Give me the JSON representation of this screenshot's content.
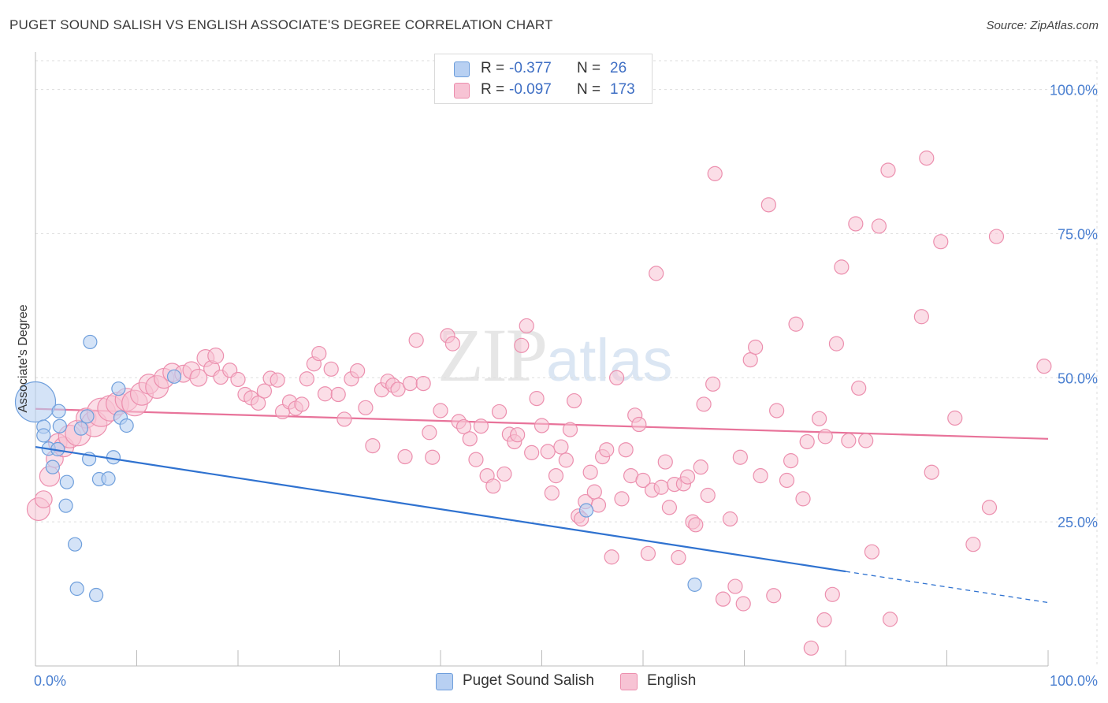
{
  "header": {
    "title": "PUGET SOUND SALISH VS ENGLISH ASSOCIATE'S DEGREE CORRELATION CHART",
    "source": "Source: ZipAtlas.com"
  },
  "watermark": {
    "zip": "ZIP",
    "atlas": "atlas"
  },
  "legend": {
    "rows": [
      {
        "r_label": "R =",
        "r_value": "-0.377",
        "n_label": "N =",
        "n_value": "26"
      },
      {
        "r_label": "R =",
        "r_value": "-0.097",
        "n_label": "N =",
        "n_value": "173"
      }
    ]
  },
  "bottom_legend": {
    "series1": "Puget Sound Salish",
    "series2": "English"
  },
  "colors": {
    "blue_fill": "#b8d0f2",
    "blue_stroke": "#6f9fdc",
    "blue_line": "#2f72d0",
    "pink_fill": "#f7c3d4",
    "pink_stroke": "#ec8fae",
    "pink_line": "#e8739a",
    "grid": "#dddddd",
    "tick": "#4a7fd0"
  },
  "chart_data": {
    "type": "scatter",
    "title": "PUGET SOUND SALISH VS ENGLISH ASSOCIATE'S DEGREE CORRELATION CHART",
    "xlabel": "",
    "ylabel": "Associate's Degree",
    "xlim": [
      0,
      100
    ],
    "ylim": [
      0,
      105
    ],
    "x_tick_labels": [
      "0.0%",
      "100.0%"
    ],
    "y_ticks": [
      25,
      50,
      75,
      100
    ],
    "y_tick_labels": [
      "25.0%",
      "50.0%",
      "75.0%",
      "100.0%"
    ],
    "grid": true,
    "series": [
      {
        "name": "Puget Sound Salish",
        "R": -0.377,
        "N": 26,
        "trend": {
          "x0": 0,
          "y0": 38.0,
          "x1": 80,
          "y1": 16.4,
          "dash_to_x": 100,
          "dash_to_y": 11.0
        },
        "points": [
          [
            0.0,
            45.8,
            3
          ],
          [
            0.8,
            41.5,
            1
          ],
          [
            0.8,
            40.0,
            1
          ],
          [
            1.3,
            37.7,
            1
          ],
          [
            2.2,
            37.6,
            1
          ],
          [
            2.3,
            44.2,
            1
          ],
          [
            2.4,
            41.6,
            1
          ],
          [
            1.7,
            34.5,
            1
          ],
          [
            3.1,
            31.9,
            1
          ],
          [
            3.0,
            27.8,
            1
          ],
          [
            3.9,
            21.1,
            1
          ],
          [
            4.1,
            13.4,
            1
          ],
          [
            5.1,
            43.3,
            1
          ],
          [
            4.5,
            41.2,
            1
          ],
          [
            5.3,
            35.9,
            1
          ],
          [
            5.4,
            56.2,
            1
          ],
          [
            6.3,
            32.4,
            1
          ],
          [
            7.2,
            32.5,
            1
          ],
          [
            7.7,
            36.2,
            1
          ],
          [
            8.2,
            48.1,
            1
          ],
          [
            8.4,
            43.1,
            1
          ],
          [
            9.0,
            41.7,
            1
          ],
          [
            6.0,
            12.3,
            1
          ],
          [
            13.7,
            50.2,
            1
          ],
          [
            54.4,
            27.0,
            1
          ],
          [
            65.1,
            14.1,
            1
          ]
        ]
      },
      {
        "name": "English",
        "R": -0.097,
        "N": 173,
        "trend": {
          "x0": 0,
          "y0": 44.6,
          "x1": 100,
          "y1": 39.4
        },
        "points": [
          [
            0.3,
            27.2,
            1.6
          ],
          [
            0.8,
            28.9,
            1.2
          ],
          [
            1.4,
            32.9,
            1.4
          ],
          [
            1.9,
            35.9,
            1.2
          ],
          [
            2.2,
            38.7,
            1.3
          ],
          [
            2.8,
            38.0,
            1.4
          ],
          [
            3.4,
            39.8,
            1.6
          ],
          [
            4.2,
            40.4,
            1.8
          ],
          [
            5.0,
            43.0,
            1.4
          ],
          [
            5.8,
            42.0,
            1.8
          ],
          [
            6.5,
            44.0,
            2.0
          ],
          [
            7.4,
            44.7,
            1.8
          ],
          [
            8.1,
            45.5,
            1.6
          ],
          [
            9.0,
            46.2,
            1.6
          ],
          [
            9.8,
            45.6,
            1.8
          ],
          [
            10.5,
            47.2,
            1.6
          ],
          [
            11.2,
            48.9,
            1.4
          ],
          [
            12.0,
            48.4,
            1.6
          ],
          [
            12.7,
            49.9,
            1.4
          ],
          [
            13.5,
            50.9,
            1.3
          ],
          [
            14.6,
            50.7,
            1.2
          ],
          [
            15.4,
            51.3,
            1.2
          ],
          [
            16.1,
            50.0,
            1.2
          ],
          [
            16.8,
            53.4,
            1.2
          ],
          [
            17.4,
            51.6,
            1.1
          ],
          [
            17.8,
            53.8,
            1.1
          ],
          [
            18.3,
            50.1,
            1.0
          ],
          [
            19.2,
            51.3,
            1.0
          ],
          [
            20.0,
            49.7,
            1.0
          ],
          [
            20.7,
            47.1,
            1.0
          ],
          [
            21.3,
            46.5,
            1.0
          ],
          [
            22.0,
            45.6,
            1.0
          ],
          [
            22.6,
            47.7,
            1.0
          ],
          [
            23.2,
            49.9,
            1.0
          ],
          [
            23.9,
            49.6,
            1.0
          ],
          [
            24.4,
            44.1,
            1.0
          ],
          [
            25.1,
            45.8,
            1.0
          ],
          [
            25.7,
            44.7,
            1.0
          ],
          [
            26.3,
            45.4,
            1.0
          ],
          [
            26.8,
            49.8,
            1.0
          ],
          [
            27.5,
            52.4,
            1.0
          ],
          [
            28.0,
            54.2,
            1.0
          ],
          [
            28.6,
            47.2,
            1.0
          ],
          [
            29.2,
            51.5,
            1.0
          ],
          [
            29.9,
            47.1,
            1.0
          ],
          [
            30.5,
            42.8,
            1.0
          ],
          [
            31.2,
            49.8,
            1.0
          ],
          [
            31.8,
            51.2,
            1.0
          ],
          [
            32.6,
            44.8,
            1.0
          ],
          [
            33.3,
            38.2,
            1.0
          ],
          [
            34.2,
            47.9,
            1.0
          ],
          [
            34.8,
            49.4,
            1.0
          ],
          [
            35.3,
            48.7,
            1.0
          ],
          [
            35.8,
            48.0,
            1.0
          ],
          [
            36.5,
            36.3,
            1.0
          ],
          [
            37.0,
            49.0,
            1.0
          ],
          [
            37.6,
            56.5,
            1.0
          ],
          [
            38.3,
            49.0,
            1.0
          ],
          [
            38.9,
            40.5,
            1.0
          ],
          [
            39.2,
            36.2,
            1.0
          ],
          [
            40.0,
            44.3,
            1.0
          ],
          [
            40.7,
            57.3,
            1.0
          ],
          [
            41.2,
            55.9,
            1.0
          ],
          [
            41.8,
            42.4,
            1.0
          ],
          [
            42.3,
            41.5,
            1.0
          ],
          [
            42.9,
            39.4,
            1.0
          ],
          [
            43.5,
            35.8,
            1.0
          ],
          [
            44.0,
            41.6,
            1.0
          ],
          [
            44.6,
            33.0,
            1.0
          ],
          [
            45.2,
            31.2,
            1.0
          ],
          [
            45.8,
            44.1,
            1.0
          ],
          [
            46.3,
            33.3,
            1.0
          ],
          [
            46.8,
            40.2,
            1.0
          ],
          [
            47.3,
            38.9,
            1.0
          ],
          [
            47.6,
            40.1,
            1.0
          ],
          [
            48.0,
            55.6,
            1.0
          ],
          [
            48.5,
            59.0,
            1.0
          ],
          [
            49.0,
            37.0,
            1.0
          ],
          [
            49.5,
            46.4,
            1.0
          ],
          [
            50.0,
            41.7,
            1.0
          ],
          [
            50.6,
            37.2,
            1.0
          ],
          [
            51.0,
            30.0,
            1.0
          ],
          [
            51.4,
            33.0,
            1.0
          ],
          [
            51.9,
            38.0,
            1.0
          ],
          [
            52.4,
            35.7,
            1.0
          ],
          [
            52.8,
            41.0,
            1.0
          ],
          [
            53.2,
            46.0,
            1.0
          ],
          [
            53.6,
            26.0,
            1.0
          ],
          [
            53.9,
            25.5,
            1.0
          ],
          [
            54.3,
            28.5,
            1.0
          ],
          [
            54.8,
            33.6,
            1.0
          ],
          [
            55.2,
            30.2,
            1.0
          ],
          [
            55.6,
            27.9,
            1.0
          ],
          [
            56.0,
            36.3,
            1.0
          ],
          [
            56.4,
            37.5,
            1.0
          ],
          [
            56.9,
            18.9,
            1.0
          ],
          [
            57.4,
            50.0,
            1.0
          ],
          [
            57.9,
            29.0,
            1.0
          ],
          [
            58.3,
            37.5,
            1.0
          ],
          [
            58.8,
            33.0,
            1.0
          ],
          [
            59.2,
            43.5,
            1.0
          ],
          [
            59.6,
            41.9,
            1.0
          ],
          [
            60.0,
            32.2,
            1.0
          ],
          [
            60.5,
            19.5,
            1.0
          ],
          [
            60.9,
            30.5,
            1.0
          ],
          [
            61.3,
            68.1,
            1.0
          ],
          [
            61.8,
            31.0,
            1.0
          ],
          [
            62.2,
            35.4,
            1.0
          ],
          [
            62.6,
            27.5,
            1.0
          ],
          [
            63.1,
            31.5,
            1.0
          ],
          [
            63.5,
            18.8,
            1.0
          ],
          [
            64.0,
            31.6,
            1.0
          ],
          [
            64.4,
            32.8,
            1.0
          ],
          [
            64.9,
            25.0,
            1.0
          ],
          [
            65.2,
            24.5,
            1.0
          ],
          [
            65.7,
            34.5,
            1.0
          ],
          [
            66.0,
            45.4,
            1.0
          ],
          [
            66.4,
            29.6,
            1.0
          ],
          [
            66.9,
            48.9,
            1.0
          ],
          [
            67.1,
            85.4,
            1.0
          ],
          [
            67.9,
            11.6,
            1.0
          ],
          [
            68.6,
            25.5,
            1.0
          ],
          [
            69.1,
            13.8,
            1.0
          ],
          [
            69.6,
            36.2,
            1.0
          ],
          [
            69.9,
            10.8,
            1.0
          ],
          [
            70.6,
            53.1,
            1.0
          ],
          [
            71.1,
            55.3,
            1.0
          ],
          [
            71.6,
            33.0,
            1.0
          ],
          [
            72.4,
            80.0,
            1.0
          ],
          [
            72.9,
            12.2,
            1.0
          ],
          [
            73.2,
            44.3,
            1.0
          ],
          [
            74.2,
            32.2,
            1.0
          ],
          [
            74.6,
            35.6,
            1.0
          ],
          [
            75.1,
            59.3,
            1.0
          ],
          [
            75.8,
            29.0,
            1.0
          ],
          [
            76.2,
            38.9,
            1.0
          ],
          [
            76.6,
            3.1,
            1.0
          ],
          [
            77.4,
            42.9,
            1.0
          ],
          [
            77.9,
            8.0,
            1.0
          ],
          [
            78.0,
            39.8,
            1.0
          ],
          [
            78.7,
            12.4,
            1.0
          ],
          [
            79.1,
            55.9,
            1.0
          ],
          [
            79.6,
            69.2,
            1.0
          ],
          [
            80.3,
            39.1,
            1.0
          ],
          [
            81.0,
            76.7,
            1.0
          ],
          [
            81.3,
            48.2,
            1.0
          ],
          [
            82.0,
            39.1,
            1.0
          ],
          [
            82.6,
            19.8,
            1.0
          ],
          [
            83.3,
            76.3,
            1.0
          ],
          [
            84.2,
            86.0,
            1.0
          ],
          [
            84.4,
            8.1,
            1.0
          ],
          [
            87.5,
            60.6,
            1.0
          ],
          [
            88.0,
            88.1,
            1.0
          ],
          [
            88.5,
            33.6,
            1.0
          ],
          [
            89.4,
            73.6,
            1.0
          ],
          [
            90.8,
            43.0,
            1.0
          ],
          [
            92.6,
            21.1,
            1.0
          ],
          [
            94.2,
            27.5,
            1.0
          ],
          [
            94.9,
            74.5,
            1.0
          ],
          [
            99.6,
            52.0,
            1.0
          ]
        ]
      }
    ]
  }
}
